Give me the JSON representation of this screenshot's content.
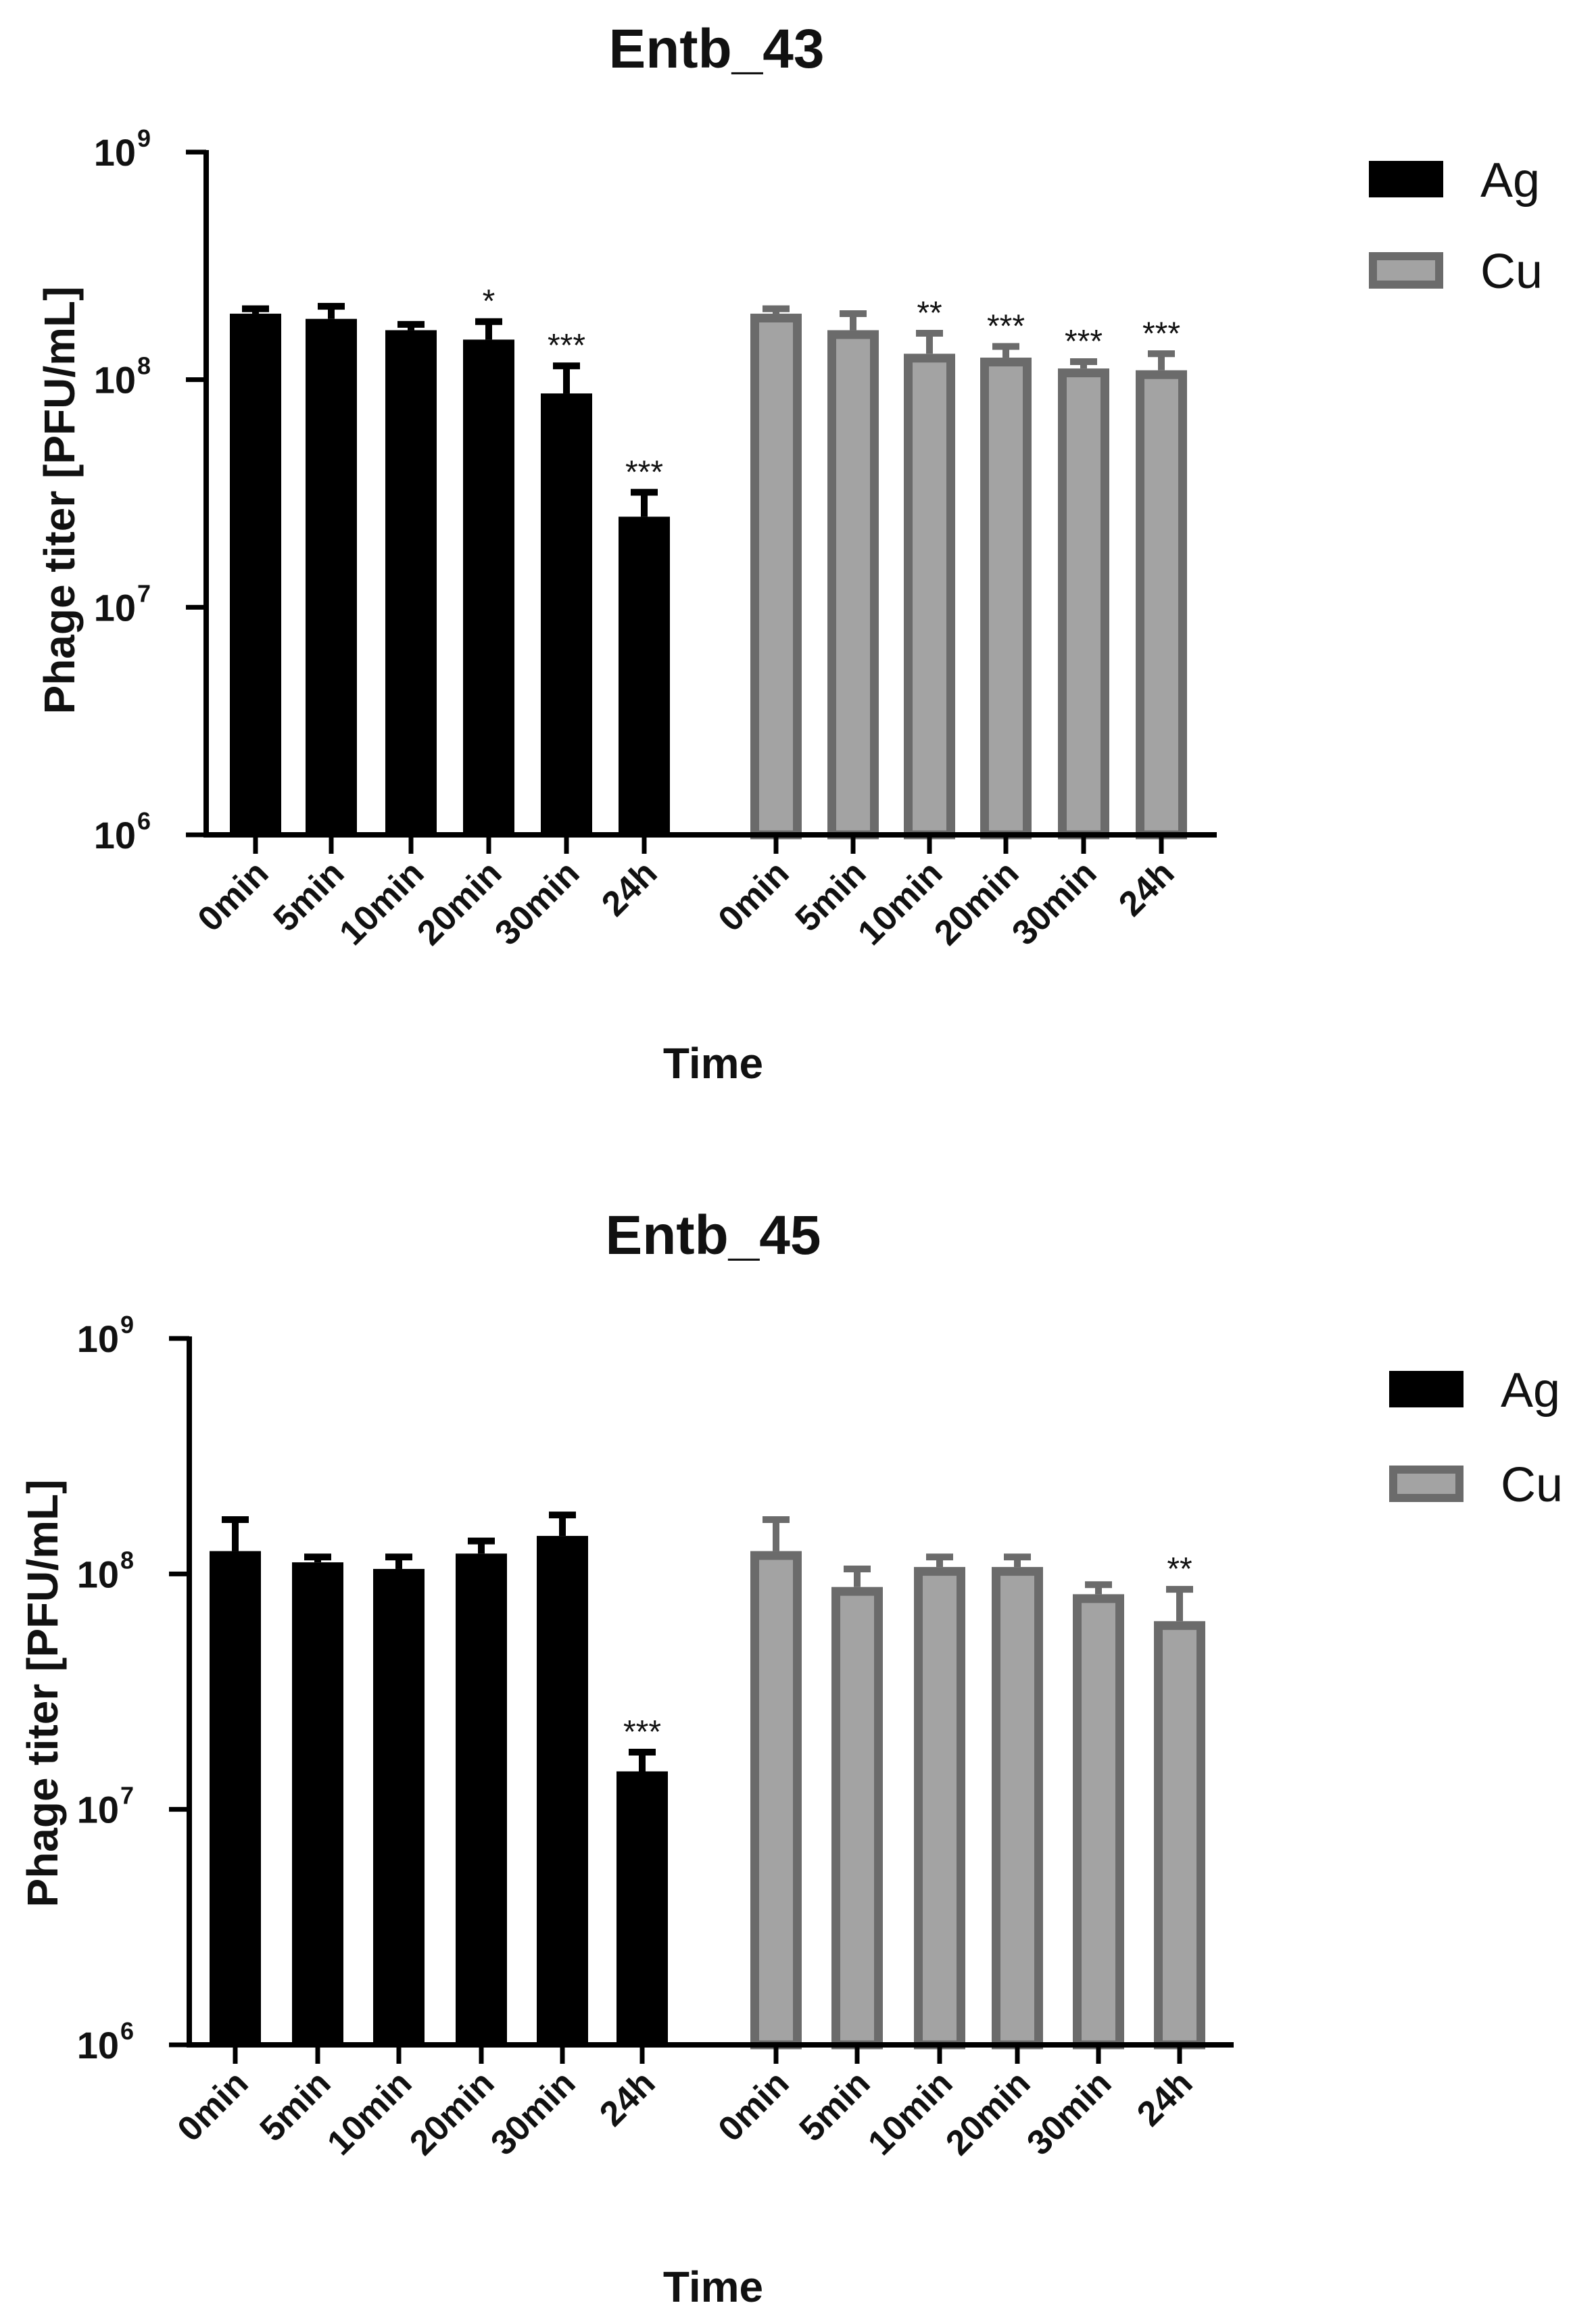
{
  "chart_data": [
    {
      "type": "bar",
      "title": "Entb_43",
      "xlabel": "Time",
      "ylabel": "Phage titer [PFU/mL]",
      "yscale": "log",
      "ylim": [
        1000000,
        1000000000
      ],
      "yticks": [
        {
          "base": "10",
          "exp": "6",
          "value": 1000000
        },
        {
          "base": "10",
          "exp": "7",
          "value": 10000000
        },
        {
          "base": "10",
          "exp": "8",
          "value": 100000000
        },
        {
          "base": "10",
          "exp": "9",
          "value": 1000000000
        }
      ],
      "legend": "top-right",
      "series": [
        {
          "name": "Ag",
          "color": "#000000",
          "edge": "#000000",
          "categories": [
            "0min",
            "5min",
            "10min",
            "20min",
            "30min",
            "24h"
          ],
          "values": [
            195000000,
            185000000,
            165000000,
            150000000,
            87000000,
            25000000
          ],
          "errors": [
            205000000,
            210000000,
            175000000,
            180000000,
            115000000,
            32000000
          ],
          "significance": [
            "",
            "",
            "",
            "*",
            "***",
            "***"
          ]
        },
        {
          "name": "Cu",
          "color": "#a3a3a3",
          "edge": "#6b6b6b",
          "categories": [
            "0min",
            "5min",
            "10min",
            "20min",
            "30min",
            "24h"
          ],
          "values": [
            195000000,
            165000000,
            130000000,
            125000000,
            112000000,
            110000000
          ],
          "errors": [
            205000000,
            195000000,
            160000000,
            140000000,
            120000000,
            130000000
          ],
          "significance": [
            "",
            "",
            "**",
            "***",
            "***",
            "***"
          ]
        }
      ]
    },
    {
      "type": "bar",
      "title": "Entb_45",
      "xlabel": "Time",
      "ylabel": "Phage titer [PFU/mL]",
      "yscale": "log",
      "ylim": [
        1000000,
        1000000000
      ],
      "yticks": [
        {
          "base": "10",
          "exp": "6",
          "value": 1000000
        },
        {
          "base": "10",
          "exp": "7",
          "value": 10000000
        },
        {
          "base": "10",
          "exp": "8",
          "value": 100000000
        },
        {
          "base": "10",
          "exp": "9",
          "value": 1000000000
        }
      ],
      "legend": "top-right",
      "series": [
        {
          "name": "Ag",
          "color": "#000000",
          "edge": "#000000",
          "categories": [
            "0min",
            "5min",
            "10min",
            "20min",
            "30min",
            "24h"
          ],
          "values": [
            125000000,
            112000000,
            105000000,
            122000000,
            145000000,
            14500000
          ],
          "errors": [
            170000000,
            118000000,
            118000000,
            138000000,
            178000000,
            17500000
          ],
          "significance": [
            "",
            "",
            "",
            "",
            "",
            "***"
          ]
        },
        {
          "name": "Cu",
          "color": "#a3a3a3",
          "edge": "#6b6b6b",
          "categories": [
            "0min",
            "5min",
            "10min",
            "20min",
            "30min",
            "24h"
          ],
          "values": [
            125000000,
            88000000,
            107000000,
            107000000,
            82000000,
            63000000
          ],
          "errors": [
            170000000,
            105000000,
            118000000,
            118000000,
            90000000,
            86000000
          ],
          "significance": [
            "",
            "",
            "",
            "",
            "",
            "**"
          ]
        }
      ]
    }
  ]
}
